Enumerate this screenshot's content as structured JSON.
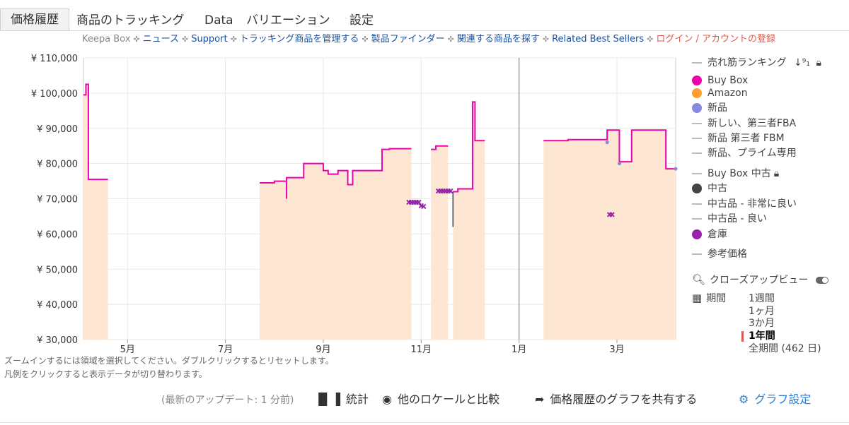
{
  "tabs": [
    "価格履歴",
    "商品のトラッキング",
    "Data",
    "バリエーション",
    "設定"
  ],
  "nav": {
    "brand": "Keepa Box",
    "links": [
      "ニュース",
      "Support",
      "トラッキング商品を管理する",
      "製品ファインダー",
      "関連する商品を探す",
      "Related Best Sellers"
    ],
    "login": "ログイン / アカウントの登録"
  },
  "legend": {
    "items": [
      {
        "label": "売れ筋ランキング",
        "type": "dash",
        "color": "#bbbbbb"
      },
      {
        "label": "Buy Box",
        "type": "dot",
        "color": "#ee00aa"
      },
      {
        "label": "Amazon",
        "type": "dot",
        "color": "#ff9d2e"
      },
      {
        "label": "新品",
        "type": "dot",
        "color": "#8888dd"
      },
      {
        "label": "新しい、第三者FBA",
        "type": "dash",
        "color": "#bbbbbb"
      },
      {
        "label": "新品 第三者 FBM",
        "type": "dash",
        "color": "#bbbbbb"
      },
      {
        "label": "新品、プライム専用",
        "type": "dash",
        "color": "#bbbbbb"
      },
      {
        "label": "Buy Box 中古",
        "type": "dash",
        "color": "#bbbbbb"
      },
      {
        "label": "中古",
        "type": "dot",
        "color": "#444444"
      },
      {
        "label": "中古品 - 非常に良い",
        "type": "dash",
        "color": "#bbbbbb"
      },
      {
        "label": "中古品 - 良い",
        "type": "dash",
        "color": "#bbbbbb"
      },
      {
        "label": "倉庫",
        "type": "dot",
        "color": "#9922aa"
      },
      {
        "label": "参考価格",
        "type": "dash",
        "color": "#bbbbbb"
      }
    ],
    "icon_names": [
      "sort-icon",
      "lock-icon",
      "search-icon",
      "toggle-icon",
      "calendar-icon"
    ],
    "closeup_label": "クローズアップビュー",
    "period_label": "期間",
    "periods": [
      "1週間",
      "1ヶ月",
      "3か月",
      "1年間",
      "全期間 (462 日)"
    ],
    "selected_period": "1年間"
  },
  "hints": [
    "ズームインするには領域を選択してください。ダブルクリックするとリセットします。",
    "凡例をクリックすると表示データが切り替わります。"
  ],
  "footer": {
    "update": "(最新のアップデート: 1 分前)",
    "stats": "統計",
    "compare": "他のロケールと比較",
    "share": "価格履歴のグラフを共有する",
    "settings": "グラフ設定"
  },
  "chart_data": {
    "type": "line",
    "x_unit": "month index (0 = start of April of the first year)",
    "xlim": [
      0.1,
      12.2
    ],
    "ylim": [
      30000,
      110000
    ],
    "y_ticks": [
      "¥ 110,000",
      "¥ 100,000",
      "¥ 90,000",
      "¥ 80,000",
      "¥ 70,000",
      "¥ 60,000",
      "¥ 50,000",
      "¥ 40,000",
      "¥ 30,000"
    ],
    "y_tick_values": [
      110000,
      100000,
      90000,
      80000,
      70000,
      60000,
      50000,
      40000,
      30000
    ],
    "x_ticks": [
      {
        "label": "5月",
        "x": 1.0
      },
      {
        "label": "7月",
        "x": 3.0
      },
      {
        "label": "9月",
        "x": 5.0
      },
      {
        "label": "11月",
        "x": 7.0
      },
      {
        "label": "1月",
        "x": 9.0
      },
      {
        "label": "3月",
        "x": 11.0
      }
    ],
    "year_marker_x": 9.0,
    "grid": true,
    "series": [
      {
        "name": "Buy Box",
        "color": "#ee00aa",
        "segments": [
          [
            [
              0.1,
              99500
            ],
            [
              0.15,
              99500
            ],
            [
              0.15,
              102500
            ],
            [
              0.2,
              102500
            ],
            [
              0.2,
              75500
            ],
            [
              0.6,
              75500
            ]
          ],
          [
            [
              3.7,
              74500
            ],
            [
              3.85,
              74500
            ],
            [
              3.85,
              74500
            ],
            [
              4.0,
              74500
            ],
            [
              4.0,
              75000
            ],
            [
              4.25,
              75000
            ],
            [
              4.25,
              70000
            ],
            [
              4.25,
              76000
            ],
            [
              4.6,
              76000
            ],
            [
              4.6,
              80000
            ],
            [
              5.0,
              80000
            ],
            [
              5.0,
              78000
            ],
            [
              5.1,
              78000
            ],
            [
              5.1,
              77000
            ],
            [
              5.3,
              77000
            ],
            [
              5.3,
              78000
            ],
            [
              5.5,
              78000
            ],
            [
              5.5,
              74000
            ],
            [
              5.6,
              74000
            ],
            [
              5.6,
              78000
            ],
            [
              6.2,
              78000
            ],
            [
              6.2,
              84000
            ],
            [
              6.35,
              84000
            ],
            [
              6.35,
              84200
            ],
            [
              6.8,
              84200
            ]
          ],
          [
            [
              7.2,
              84000
            ],
            [
              7.3,
              84000
            ],
            [
              7.3,
              85000
            ],
            [
              7.55,
              85000
            ]
          ],
          [
            [
              7.65,
              72000
            ],
            [
              7.75,
              72000
            ],
            [
              7.75,
              72800
            ],
            [
              8.05,
              72800
            ],
            [
              8.05,
              97500
            ],
            [
              8.1,
              97500
            ],
            [
              8.1,
              86500
            ],
            [
              8.3,
              86500
            ]
          ],
          [
            [
              9.5,
              86500
            ],
            [
              10.0,
              86500
            ],
            [
              10.0,
              86800
            ],
            [
              10.8,
              86800
            ],
            [
              10.8,
              89500
            ],
            [
              11.05,
              89500
            ],
            [
              11.05,
              80500
            ],
            [
              11.3,
              80500
            ],
            [
              11.3,
              89500
            ],
            [
              12.0,
              89500
            ],
            [
              12.0,
              78500
            ],
            [
              12.2,
              78500
            ]
          ]
        ]
      },
      {
        "name": "倉庫",
        "color": "#9922aa",
        "points": [
          [
            6.75,
            69000
          ],
          [
            6.8,
            69000
          ],
          [
            6.85,
            69000
          ],
          [
            6.9,
            69000
          ],
          [
            6.95,
            69000
          ],
          [
            7.0,
            68000
          ],
          [
            7.05,
            67800
          ],
          [
            7.35,
            72200
          ],
          [
            7.4,
            72200
          ],
          [
            7.45,
            72200
          ],
          [
            7.5,
            72200
          ],
          [
            7.55,
            72200
          ],
          [
            7.6,
            72200
          ],
          [
            10.85,
            65500
          ],
          [
            10.9,
            65500
          ]
        ]
      },
      {
        "name": "中古",
        "color": "#444444",
        "segments": [
          [
            [
              7.65,
              72000
            ],
            [
              7.65,
              62000
            ]
          ]
        ]
      },
      {
        "name": "新品",
        "color": "#8888dd",
        "points": [
          [
            10.8,
            86000
          ],
          [
            11.05,
            80000
          ],
          [
            12.2,
            78500
          ]
        ]
      }
    ],
    "amazon_fill_ranges": [
      [
        0.1,
        0.6
      ],
      [
        3.7,
        3.75
      ],
      [
        3.78,
        6.8
      ],
      [
        7.2,
        7.55
      ],
      [
        7.65,
        8.3
      ],
      [
        9.5,
        12.2
      ]
    ]
  }
}
